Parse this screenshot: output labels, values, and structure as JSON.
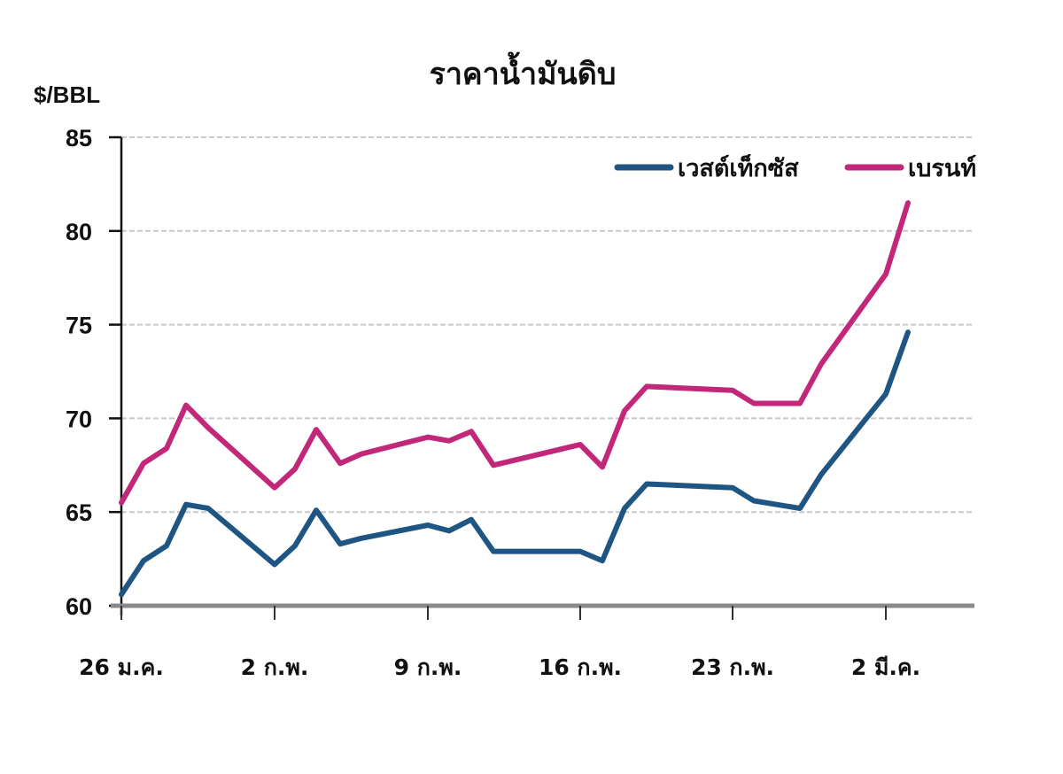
{
  "chart_data": {
    "type": "line",
    "title": "ราคาน้ำมันดิบ",
    "ylabel": "$/BBL",
    "xlabel": "",
    "ylim": [
      60,
      85
    ],
    "yticks": [
      60,
      65,
      70,
      75,
      80,
      85
    ],
    "xtick_labels": [
      "26 ม.ค.",
      "2 ก.พ.",
      "9 ก.พ.",
      "16 ก.พ.",
      "23 ก.พ.",
      "2 มี.ค."
    ],
    "grid": true,
    "legend_position": "top-right",
    "x_positions": [
      137,
      162,
      188,
      210,
      235,
      310,
      333,
      357,
      384,
      408,
      483,
      507,
      532,
      557,
      655,
      680,
      705,
      730,
      827,
      851,
      903,
      927,
      1000,
      1025
    ],
    "series": [
      {
        "name": "เวสต์เท็กซัส",
        "color": "#1f5582",
        "values": [
          60.6,
          62.4,
          63.2,
          65.4,
          65.2,
          62.2,
          63.2,
          65.1,
          63.3,
          63.6,
          64.3,
          64.0,
          64.6,
          62.9,
          62.9,
          62.4,
          65.2,
          66.5,
          66.3,
          65.6,
          65.2,
          67.0,
          71.3,
          74.6
        ]
      },
      {
        "name": "เบรนท์",
        "color": "#c2277a",
        "values": [
          65.5,
          67.6,
          68.4,
          70.7,
          69.5,
          66.3,
          67.3,
          69.4,
          67.6,
          68.1,
          69.0,
          68.8,
          69.3,
          67.5,
          68.6,
          67.4,
          70.4,
          71.7,
          71.5,
          70.8,
          70.8,
          72.9,
          77.7,
          81.5
        ]
      }
    ]
  }
}
